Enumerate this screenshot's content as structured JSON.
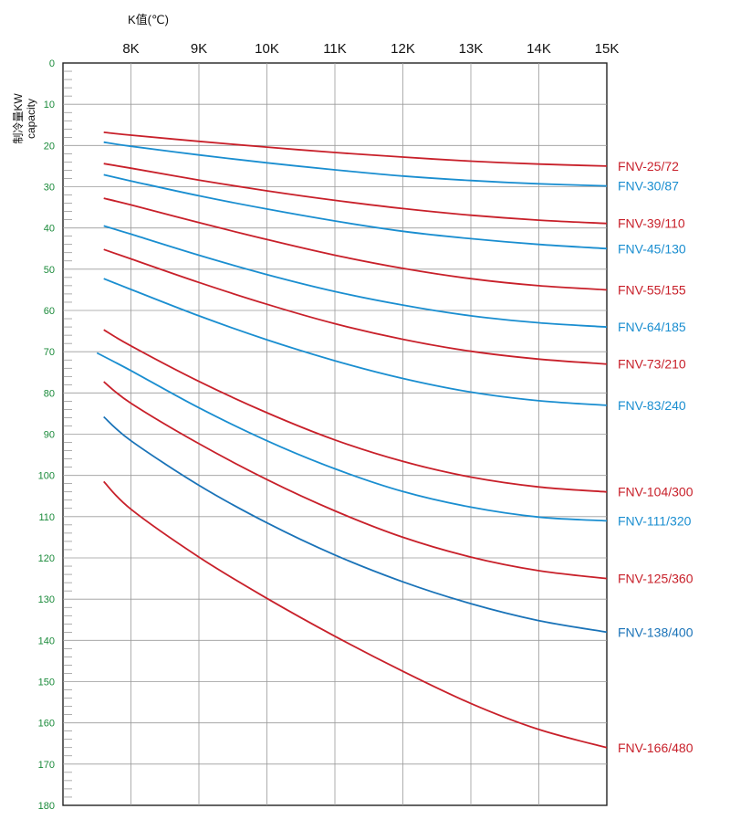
{
  "chart_data": {
    "type": "line",
    "xlabel": "K值(℃)",
    "ylabel": [
      "制冷量KW",
      "capacity"
    ],
    "x_ticks": [
      "8K",
      "9K",
      "10K",
      "11K",
      "12K",
      "13K",
      "14K",
      "15K"
    ],
    "y_ticks": [
      0,
      10,
      20,
      30,
      40,
      50,
      60,
      70,
      80,
      90,
      100,
      110,
      120,
      130,
      140,
      150,
      160,
      170,
      180
    ],
    "xlim": [
      7.0,
      15.0
    ],
    "ylim": [
      0,
      180
    ],
    "y_inverted": true,
    "grid": true,
    "legend": "labels-at-right-end",
    "series": [
      {
        "name": "FNV-25/72",
        "color": "#c8202a",
        "x": [
          7.6,
          8,
          9,
          10,
          11,
          12,
          13,
          14,
          15
        ],
        "y": [
          16.8,
          17.5,
          19.0,
          20.4,
          21.7,
          22.8,
          23.8,
          24.5,
          25.0
        ]
      },
      {
        "name": "FNV-30/87",
        "color": "#1a8ed0",
        "x": [
          7.6,
          8,
          9,
          10,
          11,
          12,
          13,
          14,
          15
        ],
        "y": [
          19.2,
          20.2,
          22.3,
          24.2,
          25.9,
          27.4,
          28.5,
          29.3,
          29.8
        ]
      },
      {
        "name": "FNV-39/110",
        "color": "#c8202a",
        "x": [
          7.6,
          8,
          9,
          10,
          11,
          12,
          13,
          14,
          15
        ],
        "y": [
          24.4,
          25.5,
          28.4,
          31.0,
          33.3,
          35.3,
          36.9,
          38.1,
          38.9
        ]
      },
      {
        "name": "FNV-45/130",
        "color": "#1a8ed0",
        "x": [
          7.6,
          8,
          9,
          10,
          11,
          12,
          13,
          14,
          15
        ],
        "y": [
          27.1,
          28.6,
          32.2,
          35.4,
          38.3,
          40.8,
          42.6,
          44.0,
          45.0
        ]
      },
      {
        "name": "FNV-55/155",
        "color": "#c8202a",
        "x": [
          7.6,
          8,
          9,
          10,
          11,
          12,
          13,
          14,
          15
        ],
        "y": [
          32.8,
          34.4,
          38.7,
          42.8,
          46.6,
          49.8,
          52.3,
          54.0,
          55.0
        ]
      },
      {
        "name": "FNV-64/185",
        "color": "#1a8ed0",
        "x": [
          7.6,
          8,
          9,
          10,
          11,
          12,
          13,
          14,
          15
        ],
        "y": [
          39.5,
          41.5,
          46.6,
          51.3,
          55.4,
          58.7,
          61.3,
          63.0,
          64.0
        ]
      },
      {
        "name": "FNV-73/210",
        "color": "#c8202a",
        "x": [
          7.6,
          8,
          9,
          10,
          11,
          12,
          13,
          14,
          15
        ],
        "y": [
          45.2,
          47.5,
          53.2,
          58.5,
          63.2,
          67.0,
          69.9,
          71.8,
          73.0
        ]
      },
      {
        "name": "FNV-83/240",
        "color": "#1a8ed0",
        "x": [
          7.6,
          8,
          9,
          10,
          11,
          12,
          13,
          14,
          15
        ],
        "y": [
          52.3,
          54.9,
          61.3,
          67.1,
          72.2,
          76.5,
          79.8,
          81.9,
          83.0
        ]
      },
      {
        "name": "FNV-104/300",
        "color": "#c8202a",
        "x": [
          7.6,
          8,
          9,
          10,
          11,
          12,
          13,
          14,
          15
        ],
        "y": [
          64.7,
          68.6,
          77.2,
          84.8,
          91.4,
          96.6,
          100.4,
          102.8,
          104.0
        ]
      },
      {
        "name": "FNV-111/320",
        "color": "#1a8ed0",
        "x": [
          7.5,
          8,
          9,
          10,
          11,
          12,
          13,
          14,
          15
        ],
        "y": [
          70.3,
          74.6,
          83.6,
          91.6,
          98.4,
          103.9,
          107.7,
          110.1,
          111.0
        ]
      },
      {
        "name": "FNV-125/360",
        "color": "#c8202a",
        "x": [
          7.6,
          8,
          9,
          10,
          11,
          12,
          13,
          14,
          15
        ],
        "y": [
          77.3,
          82.5,
          92.3,
          101.0,
          108.6,
          115.0,
          119.8,
          123.1,
          125.0
        ]
      },
      {
        "name": "FNV-138/400",
        "color": "#1a73b8",
        "x": [
          7.6,
          8,
          9,
          10,
          11,
          12,
          13,
          14,
          15
        ],
        "y": [
          85.8,
          91.6,
          102.4,
          111.5,
          119.3,
          125.8,
          131.1,
          135.2,
          138.0
        ]
      },
      {
        "name": "FNV-166/480",
        "color": "#c8202a",
        "x": [
          7.6,
          8,
          9,
          10,
          11,
          12,
          13,
          14,
          15
        ],
        "y": [
          101.5,
          108.2,
          119.8,
          129.8,
          139.0,
          147.5,
          155.3,
          161.6,
          166.0
        ]
      }
    ]
  }
}
